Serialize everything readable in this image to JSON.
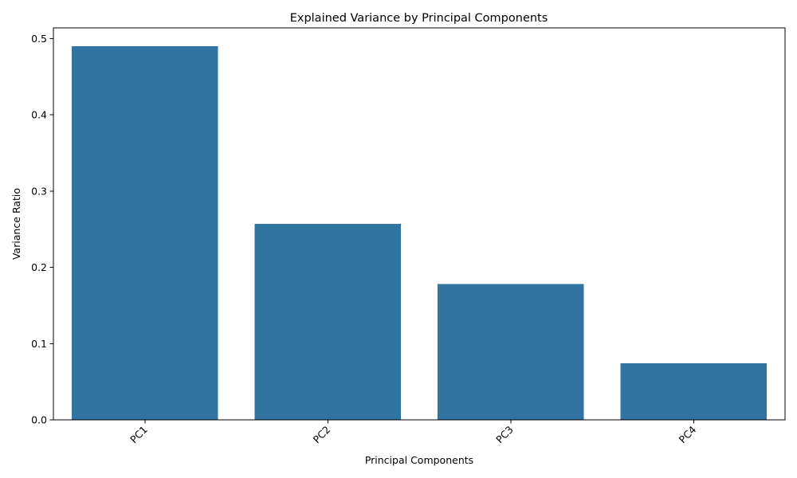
{
  "colors": {
    "bar": "#3274a1"
  },
  "chart_data": {
    "type": "bar",
    "title": "Explained Variance by Principal Components",
    "xlabel": "Principal Components",
    "ylabel": "Variance Ratio",
    "categories": [
      "PC1",
      "PC2",
      "PC3",
      "PC4"
    ],
    "values": [
      0.49,
      0.257,
      0.178,
      0.074
    ],
    "ylim": [
      0,
      0.514
    ],
    "yticks": [
      0.0,
      0.1,
      0.2,
      0.3,
      0.4,
      0.5
    ],
    "ytick_labels": [
      "0.0",
      "0.1",
      "0.2",
      "0.3",
      "0.4",
      "0.5"
    ],
    "xtick_rotation": "45 degrees",
    "grid": false,
    "legend": "none"
  }
}
